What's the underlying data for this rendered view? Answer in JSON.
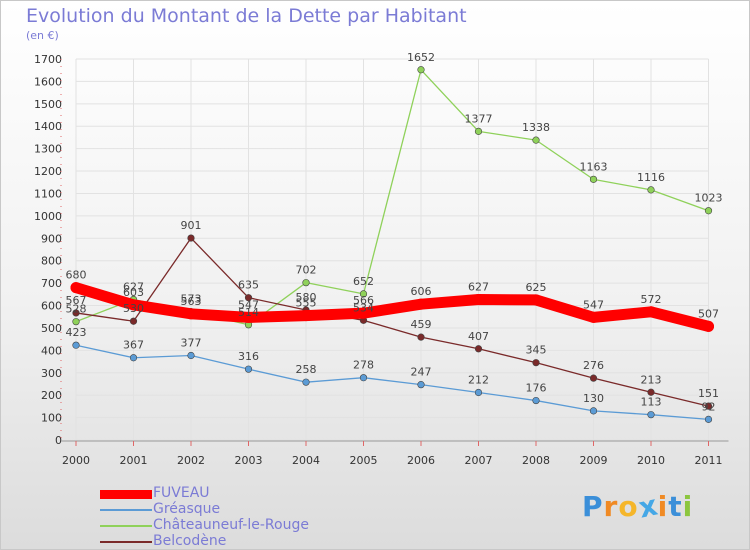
{
  "title": "Evolution du Montant de la Dette par Habitant",
  "subtitle": "(en €)",
  "logo": {
    "text": "ProXiti",
    "letters": [
      "P",
      "r",
      "o",
      "x",
      "i",
      "t",
      "i"
    ]
  },
  "colors": {
    "FUVEAU": "#ff0000",
    "Gréasque": "#5b9bd5",
    "Châteauneuf-le-Rouge": "#8fd15a",
    "Belcodène": "#7a2a2a",
    "axis_text": "#333333",
    "label_text": "#444444",
    "grid": "#e2e2e2"
  },
  "chart_data": {
    "type": "line",
    "title": "Evolution du Montant de la Dette par Habitant",
    "subtitle": "(en €)",
    "x": [
      "2000",
      "2001",
      "2002",
      "2003",
      "2004",
      "2005",
      "2006",
      "2007",
      "2008",
      "2009",
      "2010",
      "2011"
    ],
    "ylim": [
      0,
      1700
    ],
    "yticks": [
      0,
      100,
      200,
      300,
      400,
      500,
      600,
      700,
      800,
      900,
      1000,
      1100,
      1200,
      1300,
      1400,
      1500,
      1600,
      1700
    ],
    "grid": true,
    "legend_position": "bottom-left",
    "series": [
      {
        "name": "FUVEAU",
        "values": [
          680,
          603,
          563,
          547,
          555,
          566,
          606,
          627,
          625,
          547,
          572,
          507
        ]
      },
      {
        "name": "Gréasque",
        "values": [
          423,
          367,
          377,
          316,
          258,
          278,
          247,
          212,
          176,
          130,
          113,
          92
        ]
      },
      {
        "name": "Châteauneuf-le-Rouge",
        "values": [
          528,
          627,
          573,
          514,
          702,
          652,
          1652,
          1377,
          1338,
          1163,
          1116,
          1023
        ]
      },
      {
        "name": "Belcodène",
        "values": [
          567,
          530,
          901,
          635,
          580,
          534,
          459,
          407,
          345,
          276,
          213,
          151
        ]
      }
    ]
  }
}
